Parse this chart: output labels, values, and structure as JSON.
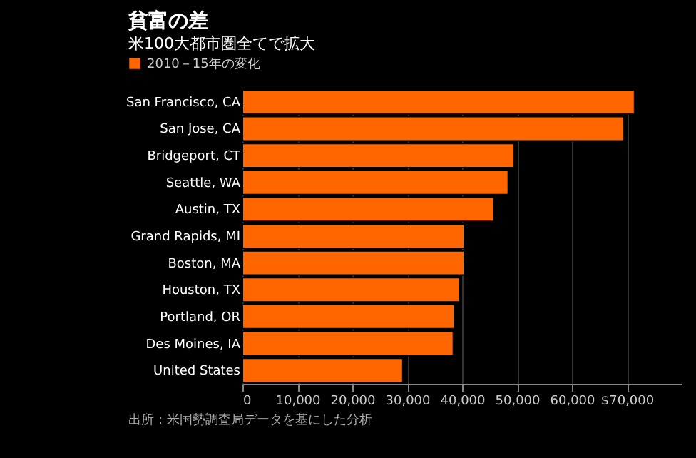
{
  "chart_data": {
    "type": "bar",
    "orientation": "horizontal",
    "title": "貧富の差",
    "subtitle": "米100大都市圏全てで拡大",
    "categories": [
      "San Francisco, CA",
      "San Jose, CA",
      "Bridgeport, CT",
      "Seattle, WA",
      "Austin, TX",
      "Grand Rapids, MI",
      "Boston, MA",
      "Houston, TX",
      "Portland, OR",
      "Des Moines, IA",
      "United States"
    ],
    "series": [
      {
        "name": "2010－15年の変化",
        "color": "#ff6600",
        "values": [
          71400,
          69500,
          49500,
          48400,
          45800,
          40400,
          40400,
          39600,
          38600,
          38400,
          29200
        ]
      }
    ],
    "xlim": [
      0,
      80000
    ],
    "xticks": [
      0,
      {
        "value": 10000,
        "label": "10,000"
      },
      {
        "value": 20000,
        "label": "20,000"
      },
      {
        "value": 30000,
        "label": "30,000"
      },
      {
        "value": 40000,
        "label": "40,000"
      },
      {
        "value": 50000,
        "label": "50,000"
      },
      {
        "value": 60000,
        "label": "60,000"
      },
      {
        "value": 70000,
        "label": "$70,000"
      }
    ],
    "grid": "x",
    "legend": "top left",
    "annotations": [
      "出所：米国勢調査局データを基にした分析"
    ]
  }
}
